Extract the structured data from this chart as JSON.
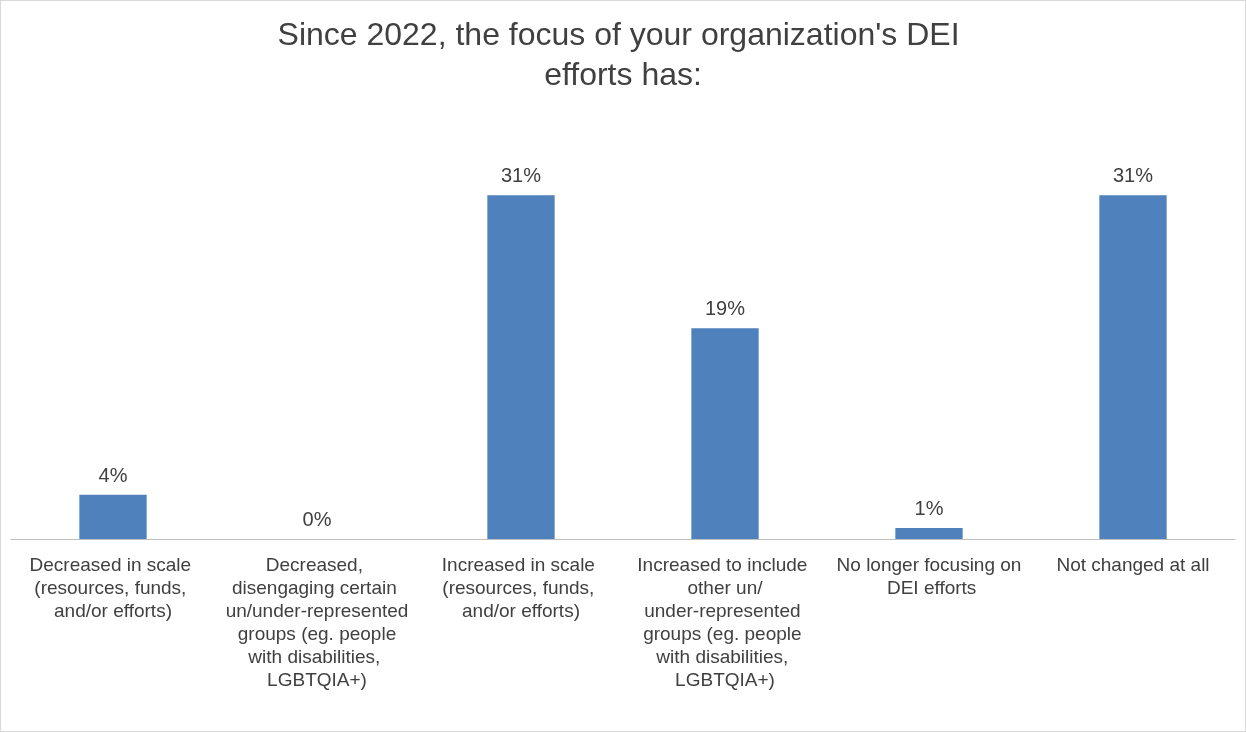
{
  "chart_data": {
    "type": "bar",
    "title": "Since 2022, the focus of your organization's DEI efforts has:",
    "categories": [
      "Decreased in scale (resources, funds, and/or efforts)",
      "Decreased, disengaging certain un/under-represented groups (eg. people with disabilities, LGBTQIA+)",
      "Increased in scale (resources, funds, and/or efforts)",
      "Increased to include other un/under-represented groups (eg. people with disabilities, LGBTQIA+)",
      "No longer focusing on DEI efforts",
      "Not changed at all"
    ],
    "values": [
      4,
      0,
      31,
      19,
      1,
      31
    ],
    "value_labels": [
      "4%",
      "0%",
      "31%",
      "19%",
      "1%",
      "31%"
    ],
    "color": "#4f81bd"
  }
}
